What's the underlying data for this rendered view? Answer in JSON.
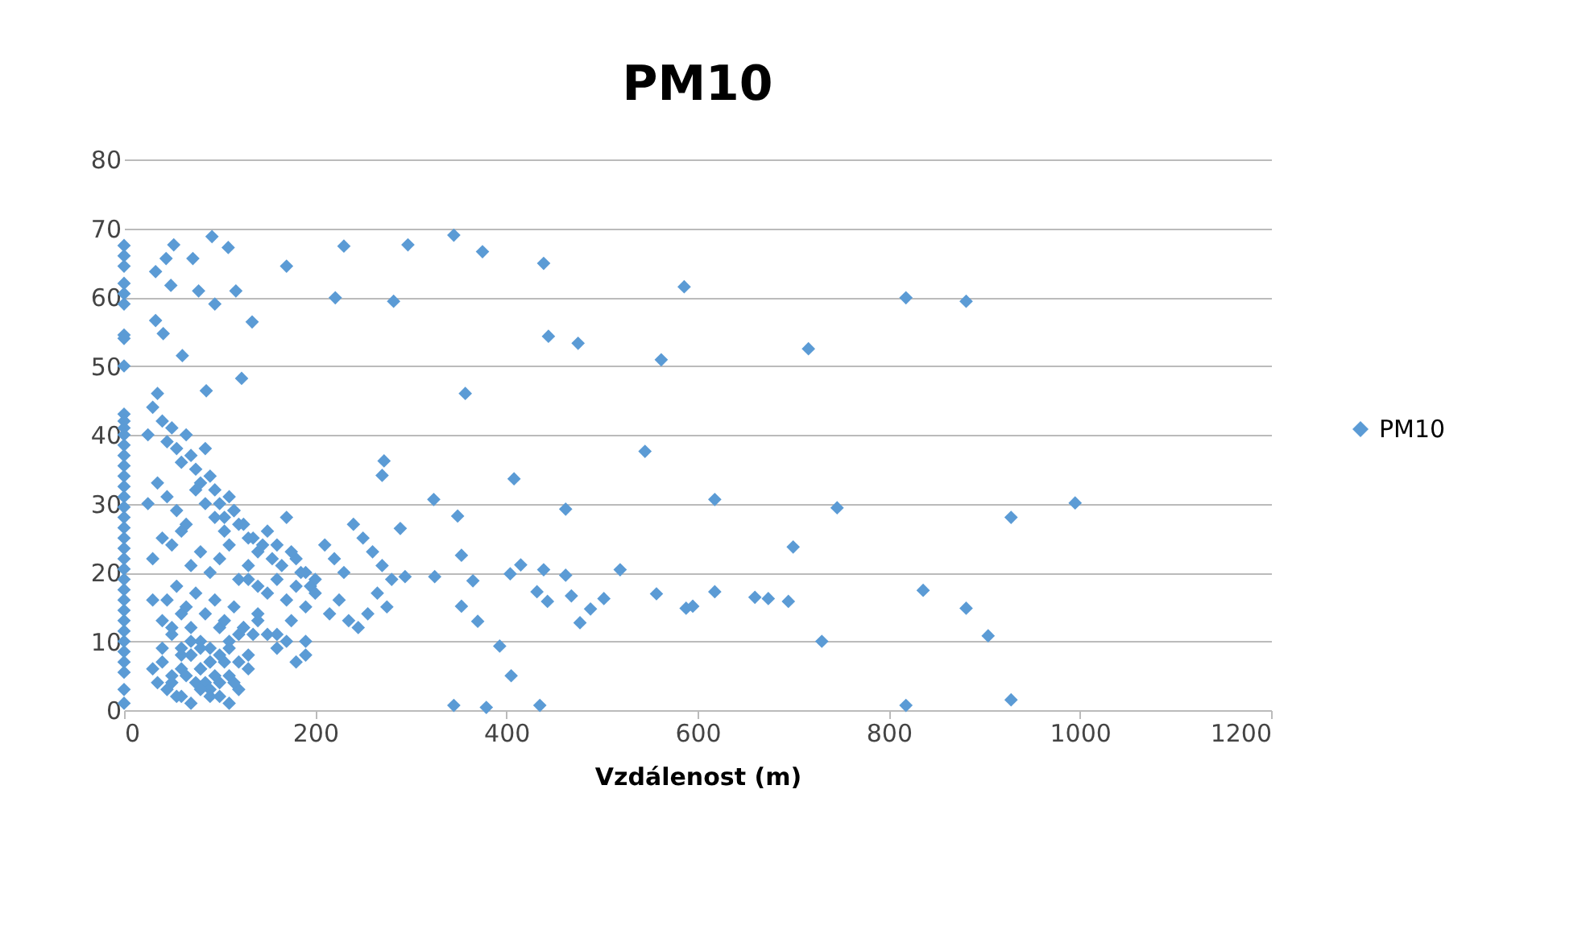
{
  "chart_data": {
    "type": "scatter",
    "title": "PM10",
    "xlabel": "Vzdálenost (m)",
    "xlim": [
      0,
      1200
    ],
    "xticks": [
      0,
      200,
      400,
      600,
      800,
      {
        "value": 1000,
        "label": "1000"
      },
      {
        "value": 1200,
        "label": "1200"
      }
    ],
    "ylim": [
      0,
      80
    ],
    "yticks": [
      0,
      10,
      20,
      30,
      40,
      50,
      60,
      70,
      80
    ],
    "grid": "y",
    "legend": "right",
    "marker": "diamond",
    "series": [
      {
        "name": "PM10",
        "color": "#5b9bd5",
        "x": [
          0,
          0,
          0,
          0,
          0,
          0,
          0,
          0,
          0,
          0,
          0,
          0,
          0,
          0,
          0,
          0,
          0,
          0,
          0,
          0,
          0,
          0,
          0,
          0,
          0,
          0,
          0,
          0,
          0,
          0,
          0,
          0,
          0,
          0,
          0,
          0,
          0,
          0,
          52,
          92,
          109,
          33,
          44,
          72,
          78,
          95,
          49,
          117,
          170,
          230,
          221,
          134,
          33,
          41,
          61,
          123,
          86,
          297,
          345,
          375,
          439,
          586,
          282,
          444,
          475,
          562,
          716,
          357,
          545,
          408,
          618,
          746,
          462,
          324,
          349,
          289,
          700,
          519,
          439,
          415,
          404,
          462,
          557,
          618,
          660,
          674,
          695,
          588,
          595,
          730,
          432,
          443,
          468,
          477,
          488,
          502,
          353,
          370,
          365,
          353,
          393,
          405,
          345,
          379,
          435,
          325,
          294,
          272,
          270,
          818,
          881,
          928,
          995,
          836,
          881,
          904,
          818,
          928,
          25,
          30,
          35,
          40,
          45,
          50,
          55,
          60,
          65,
          70,
          75,
          80,
          85,
          90,
          95,
          100,
          105,
          110,
          115,
          120,
          130,
          140,
          150,
          160,
          170,
          180,
          190,
          200,
          25,
          35,
          45,
          55,
          65,
          75,
          85,
          95,
          105,
          115,
          125,
          135,
          145,
          155,
          165,
          175,
          185,
          195,
          210,
          220,
          230,
          240,
          250,
          260,
          270,
          280,
          30,
          40,
          50,
          60,
          70,
          80,
          90,
          100,
          110,
          120,
          130,
          140,
          150,
          160,
          170,
          180,
          190,
          200,
          215,
          225,
          235,
          245,
          255,
          265,
          275,
          30,
          40,
          50,
          60,
          70,
          80,
          90,
          100,
          110,
          120,
          130,
          140,
          150,
          160,
          170,
          180,
          190,
          30,
          40,
          50,
          60,
          70,
          80,
          90,
          100,
          110,
          120,
          130,
          35,
          45,
          55,
          65,
          75,
          85,
          95,
          105,
          115,
          125,
          140,
          160,
          175,
          190,
          40,
          50,
          60,
          70,
          80,
          90,
          100,
          110,
          120,
          130,
          45,
          55,
          65,
          75,
          85,
          95,
          105,
          115,
          125,
          135,
          60,
          70,
          80,
          90,
          100,
          110,
          50,
          60,
          70,
          80,
          90
        ],
        "values": [
          67.5,
          66,
          64.5,
          62,
          60.5,
          59,
          54.5,
          54,
          50,
          43,
          42,
          41,
          40,
          38.5,
          37,
          35.5,
          34,
          32.5,
          31,
          29.5,
          28,
          26.5,
          25,
          23.5,
          22,
          20.5,
          19,
          17.5,
          16,
          14.5,
          13,
          11.5,
          10,
          8.5,
          7,
          5.5,
          3,
          1,
          67.6,
          68.8,
          67.2,
          63.7,
          65.6,
          65.6,
          60.9,
          59,
          61.7,
          60.9,
          64.5,
          67.4,
          59.9,
          56.4,
          56.6,
          54.7,
          51.5,
          48.2,
          46.4,
          67.6,
          69,
          66.6,
          64.9,
          61.5,
          59.4,
          54.3,
          53.3,
          50.9,
          52.5,
          46,
          37.6,
          33.6,
          30.6,
          29.4,
          29.2,
          30.6,
          28.2,
          26.4,
          23.7,
          20.4,
          20.4,
          21.1,
          19.8,
          19.6,
          16.9,
          17.2,
          16.4,
          16.2,
          15.8,
          14.8,
          15.1,
          10,
          17.2,
          15.8,
          16.6,
          12.7,
          14.7,
          16.2,
          15.1,
          12.9,
          18.8,
          22.5,
          9.3,
          5,
          0.7,
          0.4,
          0.7,
          19.4,
          19.4,
          36.2,
          34.1,
          59.9,
          59.4,
          28,
          30.1,
          17.4,
          14.8,
          10.8,
          0.7,
          1.5,
          40,
          44,
          46,
          42,
          39,
          41,
          38,
          36,
          40,
          37,
          35,
          33,
          38,
          34,
          32,
          30,
          28,
          31,
          29,
          27,
          25,
          23,
          26,
          24,
          28,
          22,
          20,
          19,
          30,
          33,
          31,
          29,
          27,
          32,
          30,
          28,
          26,
          29,
          27,
          25,
          24,
          22,
          21,
          23,
          20,
          18,
          24,
          22,
          20,
          27,
          25,
          23,
          21,
          19,
          22,
          25,
          24,
          26,
          21,
          23,
          20,
          22,
          24,
          19,
          21,
          18,
          17,
          19,
          16,
          18,
          15,
          17,
          14,
          16,
          13,
          12,
          14,
          17,
          15,
          16,
          13,
          11,
          14,
          12,
          10,
          9,
          12,
          10,
          11,
          8,
          13,
          11,
          9,
          10,
          7,
          8,
          6,
          7,
          5,
          6,
          8,
          9,
          7,
          4,
          5,
          3,
          6,
          4,
          3,
          2,
          5,
          4,
          4,
          5,
          7,
          4,
          12,
          14,
          11,
          13,
          10,
          9,
          12,
          8,
          10,
          6,
          7,
          8,
          9,
          7,
          19,
          16,
          18,
          15,
          17,
          14,
          16,
          13,
          15,
          12,
          11,
          9,
          8,
          6,
          3,
          2,
          1,
          4,
          2,
          1,
          3,
          2
        ]
      }
    ]
  }
}
